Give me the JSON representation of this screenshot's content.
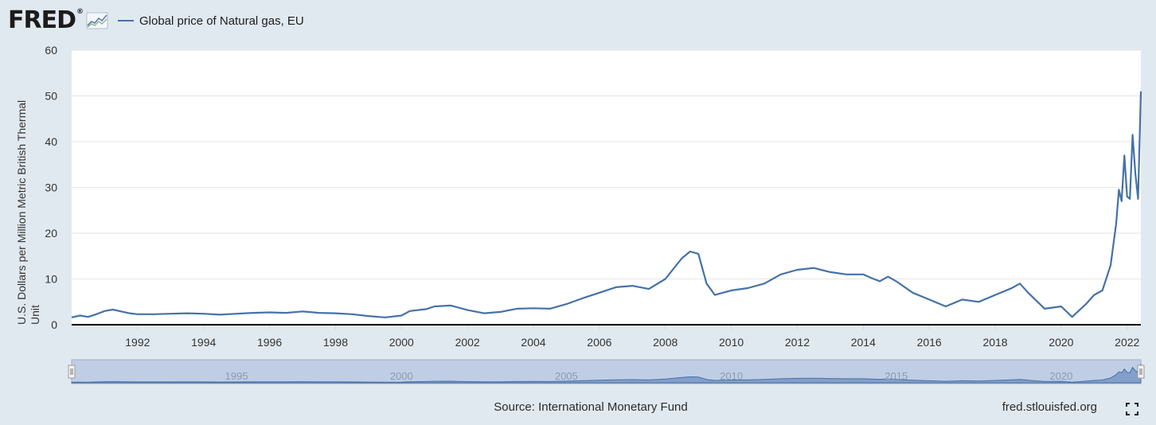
{
  "header": {
    "logo_text": "FRED",
    "logo_mark": "®",
    "logo_icon": "line-graph-icon",
    "legend_label": "Global price of Natural gas, EU"
  },
  "colors": {
    "background": "#e1e9f0",
    "series": "#4572a7",
    "navigator_fill": "#b3c4e0"
  },
  "chart_data": {
    "type": "line",
    "title": "",
    "xlabel": "",
    "ylabel": "U.S. Dollars per Million Metric British Thermal Unit",
    "ylim": [
      0,
      60
    ],
    "yticks": [
      0,
      10,
      20,
      30,
      40,
      50,
      60
    ],
    "xlim": [
      "1990-01",
      "2022-06"
    ],
    "xticks": [
      "1992",
      "1994",
      "1996",
      "1998",
      "2000",
      "2002",
      "2004",
      "2006",
      "2008",
      "2010",
      "2012",
      "2014",
      "2016",
      "2018",
      "2020",
      "2022"
    ],
    "grid": "horizontal",
    "legend": "top-left",
    "series": [
      {
        "name": "Global price of Natural gas, EU",
        "points": [
          [
            "1990-01",
            1.6
          ],
          [
            "1990-04",
            2.0
          ],
          [
            "1990-07",
            1.7
          ],
          [
            "1990-10",
            2.3
          ],
          [
            "1991-01",
            3.0
          ],
          [
            "1991-04",
            3.3
          ],
          [
            "1991-07",
            2.9
          ],
          [
            "1991-10",
            2.5
          ],
          [
            "1992-01",
            2.3
          ],
          [
            "1992-07",
            2.3
          ],
          [
            "1993-01",
            2.4
          ],
          [
            "1993-07",
            2.5
          ],
          [
            "1994-01",
            2.4
          ],
          [
            "1994-07",
            2.2
          ],
          [
            "1995-01",
            2.4
          ],
          [
            "1995-07",
            2.6
          ],
          [
            "1996-01",
            2.7
          ],
          [
            "1996-07",
            2.6
          ],
          [
            "1997-01",
            2.9
          ],
          [
            "1997-07",
            2.6
          ],
          [
            "1998-01",
            2.5
          ],
          [
            "1998-07",
            2.3
          ],
          [
            "1999-01",
            1.9
          ],
          [
            "1999-07",
            1.6
          ],
          [
            "2000-01",
            2.0
          ],
          [
            "2000-04",
            3.0
          ],
          [
            "2000-10",
            3.4
          ],
          [
            "2001-01",
            4.0
          ],
          [
            "2001-07",
            4.2
          ],
          [
            "2002-01",
            3.2
          ],
          [
            "2002-07",
            2.5
          ],
          [
            "2003-01",
            2.8
          ],
          [
            "2003-07",
            3.5
          ],
          [
            "2004-01",
            3.6
          ],
          [
            "2004-07",
            3.5
          ],
          [
            "2005-01",
            4.5
          ],
          [
            "2005-07",
            5.8
          ],
          [
            "2006-01",
            7.0
          ],
          [
            "2006-07",
            8.2
          ],
          [
            "2007-01",
            8.5
          ],
          [
            "2007-07",
            7.8
          ],
          [
            "2008-01",
            10.0
          ],
          [
            "2008-07",
            14.5
          ],
          [
            "2008-10",
            16.0
          ],
          [
            "2009-01",
            15.5
          ],
          [
            "2009-04",
            9.0
          ],
          [
            "2009-07",
            6.5
          ],
          [
            "2010-01",
            7.5
          ],
          [
            "2010-07",
            8.0
          ],
          [
            "2011-01",
            9.0
          ],
          [
            "2011-07",
            11.0
          ],
          [
            "2012-01",
            12.0
          ],
          [
            "2012-07",
            12.4
          ],
          [
            "2013-01",
            11.5
          ],
          [
            "2013-07",
            11.0
          ],
          [
            "2014-01",
            11.0
          ],
          [
            "2014-04",
            10.2
          ],
          [
            "2014-07",
            9.5
          ],
          [
            "2014-10",
            10.5
          ],
          [
            "2015-01",
            9.5
          ],
          [
            "2015-07",
            7.0
          ],
          [
            "2016-01",
            5.5
          ],
          [
            "2016-07",
            4.0
          ],
          [
            "2017-01",
            5.5
          ],
          [
            "2017-07",
            5.0
          ],
          [
            "2018-01",
            6.5
          ],
          [
            "2018-07",
            8.0
          ],
          [
            "2018-10",
            9.0
          ],
          [
            "2019-01",
            7.0
          ],
          [
            "2019-07",
            3.5
          ],
          [
            "2020-01",
            4.0
          ],
          [
            "2020-05",
            1.7
          ],
          [
            "2020-10",
            4.5
          ],
          [
            "2021-01",
            6.5
          ],
          [
            "2021-04",
            7.5
          ],
          [
            "2021-07",
            13.0
          ],
          [
            "2021-09",
            22.0
          ],
          [
            "2021-10",
            29.5
          ],
          [
            "2021-11",
            27.0
          ],
          [
            "2021-12",
            37.0
          ],
          [
            "2022-01",
            28.0
          ],
          [
            "2022-02",
            27.5
          ],
          [
            "2022-03",
            41.5
          ],
          [
            "2022-04",
            33.0
          ],
          [
            "2022-05",
            27.5
          ],
          [
            "2022-06",
            51.0
          ]
        ]
      }
    ]
  },
  "navigator": {
    "labels": [
      "1995",
      "2000",
      "2005",
      "2010",
      "2015",
      "2020"
    ]
  },
  "footer": {
    "source": "Source: International Monetary Fund",
    "url": "fred.stlouisfed.org"
  }
}
